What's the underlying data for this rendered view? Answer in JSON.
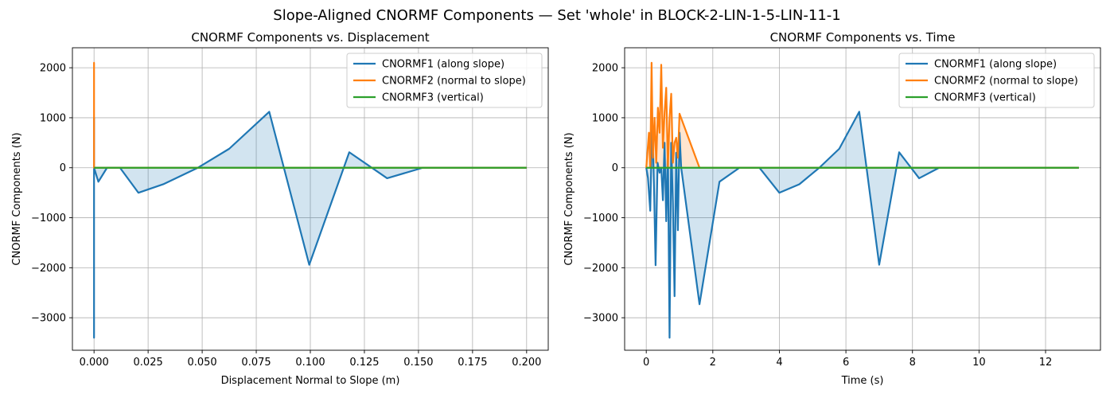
{
  "figure": {
    "suptitle": "Slope-Aligned CNORMF Components — Set 'whole' in BLOCK-2-LIN-1-5-LIN-11-1"
  },
  "chart_data": [
    {
      "type": "line",
      "title": "CNORMF Components vs. Displacement",
      "xlabel": "Displacement Normal to Slope (m)",
      "ylabel": "CNORMF Components (N)",
      "xlim": [
        -0.01,
        0.21
      ],
      "ylim": [
        -3650,
        2400
      ],
      "xticks": [
        0.0,
        0.025,
        0.05,
        0.075,
        0.1,
        0.125,
        0.15,
        0.175,
        0.2
      ],
      "xtick_labels": [
        "0.000",
        "0.025",
        "0.050",
        "0.075",
        "0.100",
        "0.125",
        "0.150",
        "0.175",
        "0.200"
      ],
      "yticks": [
        -3000,
        -2000,
        -1000,
        0,
        1000,
        2000
      ],
      "ytick_labels": [
        "−3000",
        "−2000",
        "−1000",
        "0",
        "1000",
        "2000"
      ],
      "grid": true,
      "legend_position": "top-right",
      "series": [
        {
          "name": "CNORMF1 (along slope)",
          "color": "#1f77b4",
          "fill": true,
          "x": [
            0.0,
            0.0,
            0.0,
            0.0,
            0.0,
            0.0,
            0.0,
            0.0,
            0.0,
            0.0,
            0.002,
            0.006,
            0.012,
            0.0205,
            0.032,
            0.048,
            0.0625,
            0.081,
            0.0995,
            0.118,
            0.1355,
            0.152,
            0.2
          ],
          "y": [
            0,
            -2600,
            1000,
            -3400,
            -1000,
            700,
            -2000,
            300,
            -1900,
            0,
            -280,
            0,
            0,
            -500,
            -330,
            0,
            380,
            1120,
            -1940,
            310,
            -210,
            0,
            0
          ]
        },
        {
          "name": "CNORMF2 (normal to slope)",
          "color": "#ff7f0e",
          "fill": false,
          "x": [
            0.0,
            0.0,
            0.0,
            0.0,
            0.0,
            0.0,
            0.0,
            0.0,
            0.0,
            0.2
          ],
          "y": [
            0,
            2100,
            600,
            1700,
            400,
            1200,
            300,
            800,
            0,
            0
          ]
        },
        {
          "name": "CNORMF3 (vertical)",
          "color": "#2ca02c",
          "fill": false,
          "x": [
            0.0,
            0.2
          ],
          "y": [
            0,
            0
          ]
        }
      ]
    },
    {
      "type": "line",
      "title": "CNORMF Components vs. Time",
      "xlabel": "Time (s)",
      "ylabel": "CNORMF Components (N)",
      "xlim": [
        -0.65,
        13.65
      ],
      "ylim": [
        -3650,
        2400
      ],
      "xticks": [
        0,
        2,
        4,
        6,
        8,
        10,
        12
      ],
      "xtick_labels": [
        "0",
        "2",
        "4",
        "6",
        "8",
        "10",
        "12"
      ],
      "yticks": [
        -3000,
        -2000,
        -1000,
        0,
        1000,
        2000
      ],
      "ytick_labels": [
        "−3000",
        "−2000",
        "−1000",
        "0",
        "1000",
        "2000"
      ],
      "grid": true,
      "legend_position": "top-right",
      "series": [
        {
          "name": "CNORMF1 (along slope)",
          "color": "#1f77b4",
          "fill": true,
          "x": [
            0.0,
            0.05,
            0.12,
            0.18,
            0.24,
            0.28,
            0.34,
            0.4,
            0.45,
            0.5,
            0.55,
            0.6,
            0.65,
            0.7,
            0.75,
            0.8,
            0.85,
            0.9,
            0.95,
            1.0,
            1.05,
            1.6,
            2.2,
            2.8,
            3.4,
            4.0,
            4.6,
            5.2,
            5.8,
            6.4,
            7.0,
            7.6,
            8.2,
            8.8,
            13.0
          ],
          "y": [
            0,
            -200,
            -860,
            1000,
            -600,
            -1950,
            100,
            -100,
            0,
            -650,
            500,
            -1070,
            400,
            -3400,
            500,
            -700,
            -2570,
            300,
            -1250,
            700,
            0,
            -2730,
            -280,
            0,
            0,
            -500,
            -330,
            0,
            380,
            1120,
            -1940,
            310,
            -210,
            0,
            0
          ]
        },
        {
          "name": "CNORMF2 (normal to slope)",
          "color": "#ff7f0e",
          "fill": true,
          "x": [
            0.0,
            0.08,
            0.12,
            0.16,
            0.2,
            0.25,
            0.3,
            0.35,
            0.4,
            0.45,
            0.5,
            0.55,
            0.6,
            0.65,
            0.7,
            0.75,
            0.8,
            0.85,
            0.9,
            0.95,
            1.0,
            1.6,
            13.0
          ],
          "y": [
            0,
            700,
            0,
            2100,
            200,
            1000,
            100,
            1200,
            700,
            2060,
            400,
            1100,
            1600,
            0,
            1000,
            1480,
            100,
            500,
            600,
            200,
            1080,
            0,
            0
          ]
        },
        {
          "name": "CNORMF3 (vertical)",
          "color": "#2ca02c",
          "fill": false,
          "x": [
            0.0,
            13.0
          ],
          "y": [
            0,
            0
          ]
        }
      ]
    }
  ]
}
